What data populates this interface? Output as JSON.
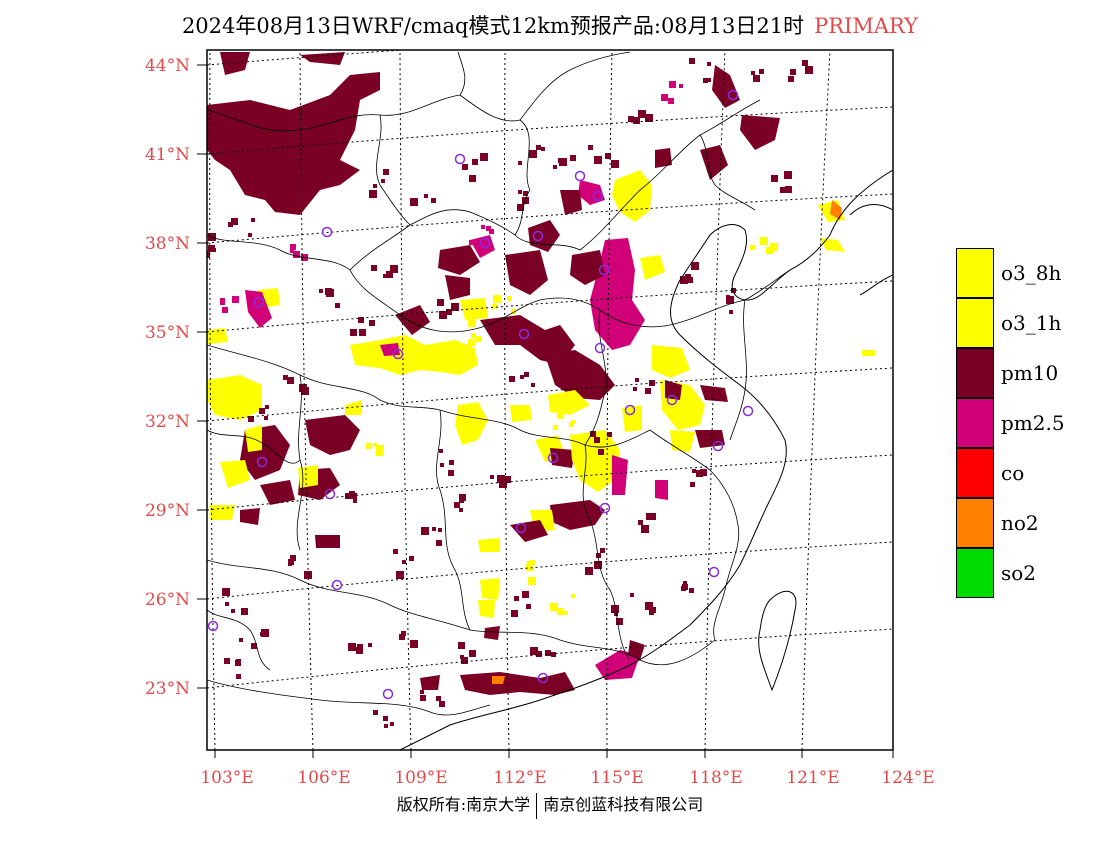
{
  "title": {
    "main": "2024年08月13日WRF/cmaq模式12km预报产品:08月13日21时",
    "tag": "PRIMARY"
  },
  "axes": {
    "lat_labels": [
      "44°N",
      "41°N",
      "38°N",
      "35°N",
      "32°N",
      "29°N",
      "26°N",
      "23°N"
    ],
    "lon_labels": [
      "103°E",
      "106°E",
      "109°E",
      "112°E",
      "115°E",
      "118°E",
      "121°E",
      "124°E"
    ]
  },
  "legend": [
    {
      "label": "o3_8h",
      "color": "#ffff00"
    },
    {
      "label": "o3_1h",
      "color": "#ffff00"
    },
    {
      "label": "pm10",
      "color": "#7a0025"
    },
    {
      "label": "pm2.5",
      "color": "#d20078"
    },
    {
      "label": "co",
      "color": "#ff0000"
    },
    {
      "label": "no2",
      "color": "#ff7f00"
    },
    {
      "label": "so2",
      "color": "#00dd00"
    }
  ],
  "footer": {
    "left": "版权所有:南京大学",
    "right": "南京创蓝科技有限公司"
  }
}
